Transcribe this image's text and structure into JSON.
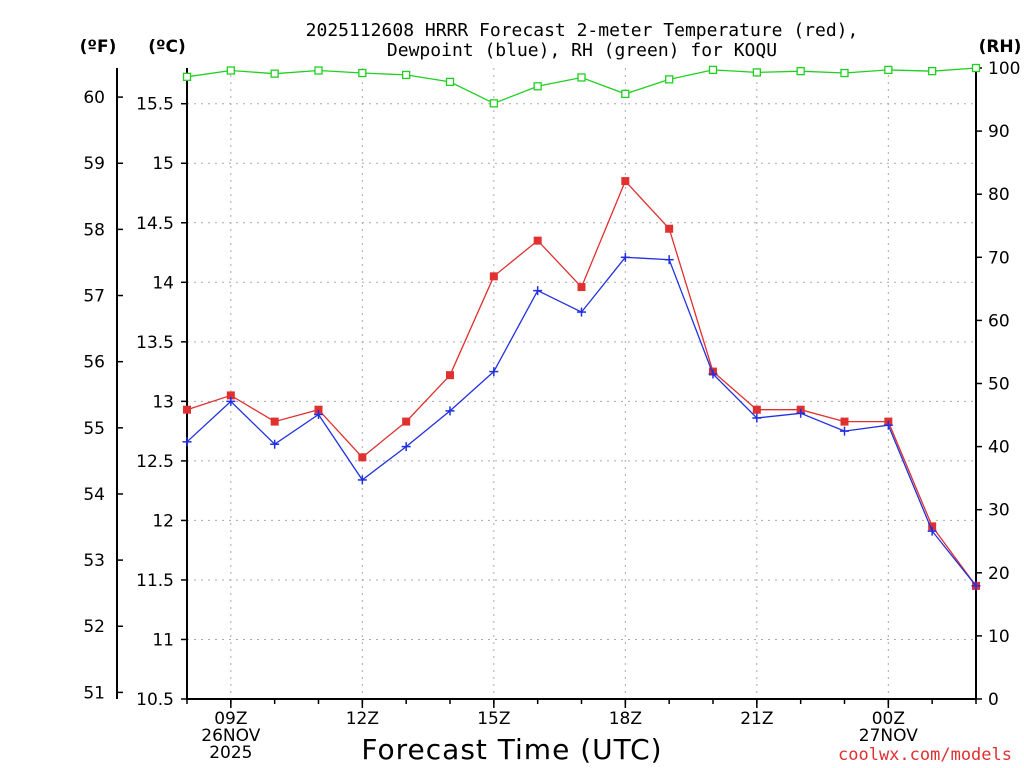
{
  "header": {
    "title_line1": "2025112608 HRRR Forecast 2-meter Temperature (red),",
    "title_line2": "Dewpoint (blue), RH (green) for KOQU"
  },
  "axes": {
    "left_outer_unit": "(ºF)",
    "left_inner_unit": "(ºC)",
    "right_unit": "(RH)",
    "xlabel": "Forecast Time (UTC)"
  },
  "credit": "coolwx.com/models",
  "colors": {
    "temperature": "#e03030",
    "dewpoint": "#2030e0",
    "rh": "#20d020"
  },
  "chart_data": {
    "type": "line",
    "title": "2025112608 HRRR Forecast 2-meter Temperature (red), Dewpoint (blue), RH (green) for KOQU",
    "xlabel": "Forecast Time (UTC)",
    "ylabel_left_c": "(ºC)",
    "ylabel_left_f": "(ºF)",
    "ylabel_right": "(RH)",
    "x": [
      8,
      9,
      10,
      11,
      12,
      13,
      14,
      15,
      16,
      17,
      18,
      19,
      20,
      21,
      22,
      23,
      24,
      25,
      26
    ],
    "x_range": [
      8,
      26
    ],
    "ylim_c": [
      10.5,
      15.8
    ],
    "ylim_f": [
      50.9,
      60.44
    ],
    "ylim_rh": [
      0,
      100
    ],
    "yticks_c": [
      10.5,
      11,
      11.5,
      12,
      12.5,
      13,
      13.5,
      14,
      14.5,
      15,
      15.5
    ],
    "yticks_c_labels": [
      "10.5",
      "11",
      "11.5",
      "12",
      "12.5",
      "13",
      "13.5",
      "14",
      "14.5",
      "15",
      "15.5"
    ],
    "yticks_f": [
      51,
      52,
      53,
      54,
      55,
      56,
      57,
      58,
      59,
      60
    ],
    "yticks_f_labels": [
      "51",
      "52",
      "53",
      "54",
      "55",
      "56",
      "57",
      "58",
      "59",
      "60"
    ],
    "yticks_rh": [
      0,
      10,
      20,
      30,
      40,
      50,
      60,
      70,
      80,
      90,
      100
    ],
    "yticks_rh_labels": [
      "0",
      "10",
      "20",
      "30",
      "40",
      "50",
      "60",
      "70",
      "80",
      "90",
      "100"
    ],
    "xticks": [
      {
        "x": 9,
        "lines": [
          "09Z",
          "26NOV",
          "2025"
        ]
      },
      {
        "x": 12,
        "lines": [
          "12Z"
        ]
      },
      {
        "x": 15,
        "lines": [
          "15Z"
        ]
      },
      {
        "x": 18,
        "lines": [
          "18Z"
        ]
      },
      {
        "x": 21,
        "lines": [
          "21Z"
        ]
      },
      {
        "x": 24,
        "lines": [
          "00Z",
          "27NOV"
        ]
      }
    ],
    "grid": true,
    "series": [
      {
        "name": "Temperature",
        "axis": "c",
        "color": "#e03030",
        "marker": "filled-square",
        "values": [
          12.93,
          13.05,
          12.83,
          12.93,
          12.53,
          12.83,
          13.22,
          14.05,
          14.35,
          13.96,
          14.85,
          14.45,
          13.25,
          12.93,
          12.93,
          12.83,
          12.83,
          11.95,
          11.45
        ]
      },
      {
        "name": "Dewpoint",
        "axis": "c",
        "color": "#2030e0",
        "marker": "plus",
        "values": [
          12.66,
          13.0,
          12.64,
          12.89,
          12.34,
          12.62,
          12.92,
          13.25,
          13.93,
          13.75,
          14.21,
          14.19,
          13.23,
          12.86,
          12.9,
          12.75,
          12.8,
          11.91,
          11.45
        ]
      },
      {
        "name": "RH",
        "axis": "rh",
        "color": "#20d020",
        "marker": "hollow-square",
        "values": [
          98.6,
          99.6,
          99.1,
          99.6,
          99.2,
          98.9,
          97.8,
          94.4,
          97.1,
          98.5,
          95.9,
          98.2,
          99.7,
          99.3,
          99.5,
          99.2,
          99.7,
          99.5,
          100
        ]
      }
    ]
  }
}
